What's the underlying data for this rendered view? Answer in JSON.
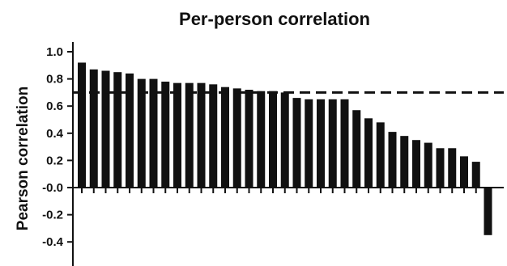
{
  "chart_data": {
    "type": "bar",
    "title": "Per-person correlation",
    "xlabel": "",
    "ylabel": "Pearson correlation",
    "ylim": [
      -0.5,
      1.0
    ],
    "yticks": [
      "1.0",
      "0.8",
      "0.6",
      "0.4",
      "0.2",
      "-0.0",
      "-0.2",
      "-0.4"
    ],
    "ytick_values": [
      1.0,
      0.8,
      0.6,
      0.4,
      0.2,
      0.0,
      -0.2,
      -0.4
    ],
    "reference_line": 0.7,
    "grid": false,
    "bar_color": "#111111",
    "values": [
      0.92,
      0.87,
      0.86,
      0.85,
      0.84,
      0.8,
      0.8,
      0.78,
      0.77,
      0.77,
      0.77,
      0.76,
      0.74,
      0.73,
      0.72,
      0.71,
      0.71,
      0.7,
      0.66,
      0.65,
      0.65,
      0.65,
      0.65,
      0.57,
      0.51,
      0.48,
      0.41,
      0.38,
      0.35,
      0.33,
      0.29,
      0.29,
      0.23,
      0.19,
      -0.35
    ]
  }
}
